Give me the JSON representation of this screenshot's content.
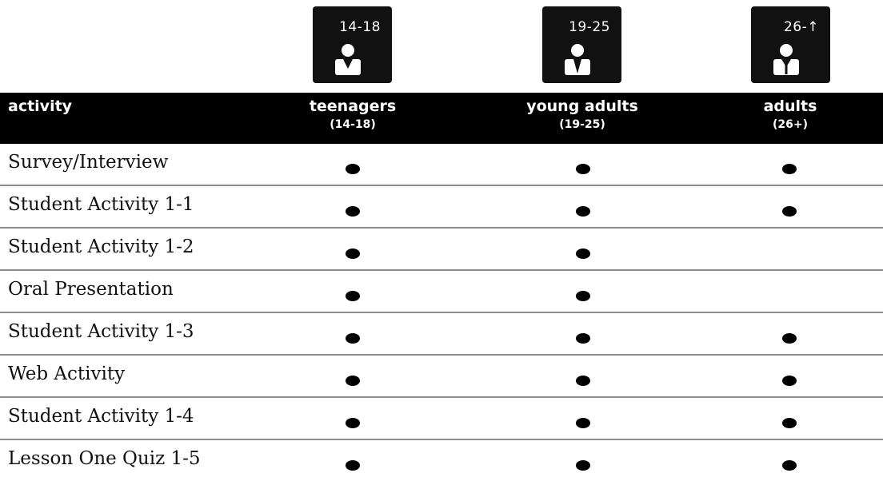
{
  "age_icons": [
    {
      "label": "14-18",
      "icon": "person-icon"
    },
    {
      "label": "19-25",
      "icon": "person-tie-icon"
    },
    {
      "label": "26-↑",
      "icon": "person-suit-icon"
    }
  ],
  "header": {
    "activity": "activity",
    "columns": [
      {
        "main": "teenagers",
        "sub": "(14-18)"
      },
      {
        "main": "young adults",
        "sub": "(19-25)"
      },
      {
        "main": "adults",
        "sub": "(26+)"
      }
    ]
  },
  "rows": [
    {
      "label": "Survey/Interview",
      "marks": [
        true,
        true,
        true
      ]
    },
    {
      "label": "Student Activity 1-1",
      "marks": [
        true,
        true,
        true
      ]
    },
    {
      "label": "Student Activity 1-2",
      "marks": [
        true,
        true,
        false
      ]
    },
    {
      "label": "Oral Presentation",
      "marks": [
        true,
        true,
        false
      ]
    },
    {
      "label": "Student Activity 1-3",
      "marks": [
        true,
        true,
        true
      ]
    },
    {
      "label": "Web Activity",
      "marks": [
        true,
        true,
        true
      ]
    },
    {
      "label": "Student Activity 1-4",
      "marks": [
        true,
        true,
        true
      ]
    },
    {
      "label": "Lesson One Quiz 1-5",
      "marks": [
        true,
        true,
        true
      ]
    }
  ],
  "colors": {
    "header_bg": "#000000",
    "icon_bg": "#111111",
    "divider": "#8c8c8c"
  }
}
